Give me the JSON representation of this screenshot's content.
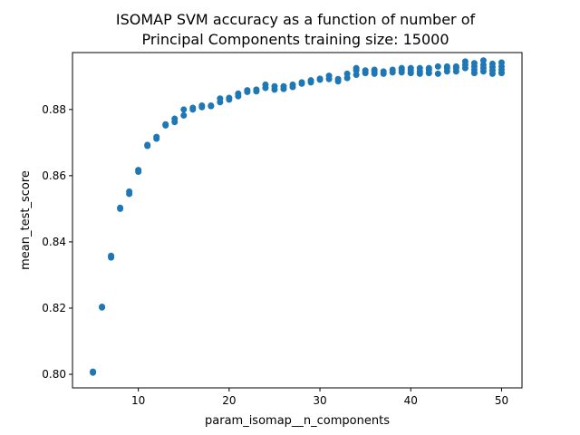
{
  "chart_data": {
    "type": "scatter",
    "title_lines": [
      "ISOMAP SVM accuracy as a function of number of",
      "Principal Components training size: 15000"
    ],
    "xlabel": "param_isomap__n_components",
    "ylabel": "mean_test_score",
    "xlim": [
      2.75,
      52.25
    ],
    "ylim": [
      0.7959,
      0.8972
    ],
    "xticks": [
      10,
      20,
      30,
      40,
      50
    ],
    "yticks": [
      0.8,
      0.82,
      0.84,
      0.86,
      0.88
    ],
    "ytick_labels": [
      "0.80",
      "0.82",
      "0.84",
      "0.86",
      "0.88"
    ],
    "grid": false,
    "marker_color": "#1f77b4",
    "series": [
      {
        "points": [
          [
            5,
            0.8005
          ],
          [
            5,
            0.8008
          ],
          [
            6,
            0.8202
          ],
          [
            6,
            0.8204
          ],
          [
            7,
            0.8353
          ],
          [
            7,
            0.8358
          ],
          [
            8,
            0.85
          ],
          [
            8,
            0.8503
          ],
          [
            9,
            0.8545
          ],
          [
            9,
            0.8552
          ],
          [
            10,
            0.8612
          ],
          [
            10,
            0.8617
          ],
          [
            11,
            0.869
          ],
          [
            11,
            0.8693
          ],
          [
            12,
            0.8712
          ],
          [
            12,
            0.8717
          ],
          [
            13,
            0.8752
          ],
          [
            13,
            0.8755
          ],
          [
            14,
            0.8762
          ],
          [
            14,
            0.8772
          ],
          [
            15,
            0.8782
          ],
          [
            15,
            0.88
          ],
          [
            16,
            0.88
          ],
          [
            16,
            0.8805
          ],
          [
            17,
            0.8807
          ],
          [
            17,
            0.8812
          ],
          [
            18,
            0.881
          ],
          [
            18,
            0.8812
          ],
          [
            19,
            0.8822
          ],
          [
            19,
            0.8833
          ],
          [
            20,
            0.883
          ],
          [
            20,
            0.8835
          ],
          [
            21,
            0.884
          ],
          [
            21,
            0.8848
          ],
          [
            22,
            0.8853
          ],
          [
            22,
            0.8858
          ],
          [
            23,
            0.8855
          ],
          [
            23,
            0.886
          ],
          [
            24,
            0.8865
          ],
          [
            24,
            0.8875
          ],
          [
            25,
            0.886
          ],
          [
            25,
            0.887
          ],
          [
            26,
            0.8862
          ],
          [
            26,
            0.887
          ],
          [
            27,
            0.8868
          ],
          [
            27,
            0.8875
          ],
          [
            28,
            0.8878
          ],
          [
            28,
            0.8882
          ],
          [
            29,
            0.8882
          ],
          [
            29,
            0.8888
          ],
          [
            30,
            0.889
          ],
          [
            30,
            0.8893
          ],
          [
            31,
            0.8892
          ],
          [
            31,
            0.8902
          ],
          [
            32,
            0.8885
          ],
          [
            32,
            0.8892
          ],
          [
            33,
            0.8895
          ],
          [
            33,
            0.8908
          ],
          [
            34,
            0.8905
          ],
          [
            34,
            0.8918
          ],
          [
            34,
            0.8925
          ],
          [
            35,
            0.891
          ],
          [
            35,
            0.8918
          ],
          [
            36,
            0.8908
          ],
          [
            36,
            0.8915
          ],
          [
            36,
            0.892
          ],
          [
            37,
            0.8908
          ],
          [
            37,
            0.8915
          ],
          [
            38,
            0.8912
          ],
          [
            38,
            0.892
          ],
          [
            39,
            0.8912
          ],
          [
            39,
            0.892
          ],
          [
            39,
            0.8925
          ],
          [
            40,
            0.891
          ],
          [
            40,
            0.8918
          ],
          [
            40,
            0.8925
          ],
          [
            41,
            0.8908
          ],
          [
            41,
            0.8915
          ],
          [
            41,
            0.8925
          ],
          [
            42,
            0.891
          ],
          [
            42,
            0.892
          ],
          [
            42,
            0.8925
          ],
          [
            43,
            0.8908
          ],
          [
            43,
            0.893
          ],
          [
            44,
            0.8915
          ],
          [
            44,
            0.8925
          ],
          [
            44,
            0.893
          ],
          [
            45,
            0.8915
          ],
          [
            45,
            0.8925
          ],
          [
            45,
            0.893
          ],
          [
            46,
            0.8925
          ],
          [
            46,
            0.8935
          ],
          [
            46,
            0.8945
          ],
          [
            47,
            0.891
          ],
          [
            47,
            0.892
          ],
          [
            47,
            0.893
          ],
          [
            47,
            0.894
          ],
          [
            48,
            0.8915
          ],
          [
            48,
            0.8925
          ],
          [
            48,
            0.8935
          ],
          [
            48,
            0.8948
          ],
          [
            49,
            0.8908
          ],
          [
            49,
            0.8918
          ],
          [
            49,
            0.8928
          ],
          [
            49,
            0.8938
          ],
          [
            50,
            0.891
          ],
          [
            50,
            0.892
          ],
          [
            50,
            0.893
          ],
          [
            50,
            0.8942
          ]
        ]
      }
    ]
  }
}
